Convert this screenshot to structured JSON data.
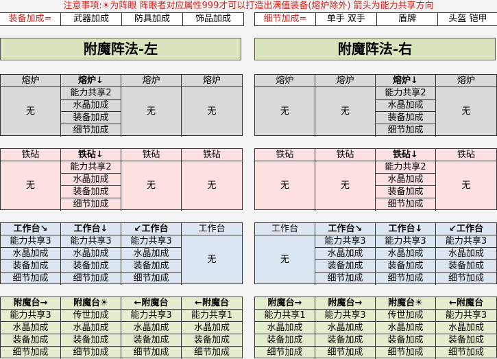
{
  "notice": "注意事项:☀为阵眼 阵眼者对应属性999才可以打造出满值装备(熔炉除外) 箭头为能力共享方向",
  "header_left": [
    "装备加成=",
    "武器加成",
    "防具加成",
    "饰品加成"
  ],
  "header_right": [
    "细节加成=",
    "单手 双手",
    "盾牌",
    "头盔 铠甲"
  ],
  "titles": {
    "left": "附魔阵法-左",
    "right": "附魔阵法-右"
  },
  "colors": {
    "furnace": "#d9d9d9",
    "anvil": "#fde1e1",
    "workbench": "#dce6f1",
    "enchant": "#e2eecd",
    "title": "#d8e4bc",
    "accent": "#e0201b"
  },
  "sections": [
    {
      "key": "furnace",
      "left": [
        {
          "h": "熔炉",
          "none": "无"
        },
        {
          "h": "熔炉↓",
          "b": true,
          "items": [
            "能力共享2",
            "水晶加成",
            "装备加成",
            "细节加成"
          ]
        },
        {
          "h": "熔炉",
          "none": "无"
        },
        {
          "h": "熔炉",
          "none": "无"
        }
      ],
      "right": [
        {
          "h": "熔炉",
          "none": "无"
        },
        {
          "h": "熔炉",
          "none": "无"
        },
        {
          "h": "熔炉↓",
          "b": true,
          "items": [
            "能力共享2",
            "水晶加成",
            "装备加成",
            "细节加成"
          ]
        },
        {
          "h": "熔炉",
          "none": "无"
        }
      ]
    },
    {
      "key": "anvil",
      "left": [
        {
          "h": "铁砧",
          "none": "无"
        },
        {
          "h": "铁砧↓",
          "b": true,
          "items": [
            "能力共享2",
            "水晶加成",
            "装备加成",
            "细节加成"
          ]
        },
        {
          "h": "铁砧",
          "none": "无"
        },
        {
          "h": "铁砧",
          "none": "无"
        }
      ],
      "right": [
        {
          "h": "铁砧",
          "none": "无"
        },
        {
          "h": "铁砧",
          "none": "无"
        },
        {
          "h": "铁砧↓",
          "b": true,
          "items": [
            "能力共享2",
            "水晶加成",
            "装备加成",
            "细节加成"
          ]
        },
        {
          "h": "铁砧",
          "none": "无"
        }
      ]
    },
    {
      "key": "workbench",
      "left": [
        {
          "h": "工作台↘",
          "b": true,
          "items": [
            "能力共享3",
            "水晶加成",
            "装备加成",
            "细节加成"
          ]
        },
        {
          "h": "工作台↓",
          "b": true,
          "items": [
            "能力共享3",
            "水晶加成",
            "装备加成",
            "细节加成"
          ]
        },
        {
          "h": "↙工作台",
          "b": true,
          "items": [
            "能力共享3",
            "水晶加成",
            "装备加成",
            "细节加成"
          ]
        },
        {
          "h": "工作台",
          "none": "无"
        }
      ],
      "right": [
        {
          "h": "工作台",
          "none": "无"
        },
        {
          "h": "工作台↘",
          "b": true,
          "items": [
            "能力共享3",
            "水晶加成",
            "装备加成",
            "细节加成"
          ]
        },
        {
          "h": "工作台↓",
          "b": true,
          "items": [
            "能力共享3",
            "水晶加成",
            "装备加成",
            "细节加成"
          ]
        },
        {
          "h": "↙工作台",
          "b": true,
          "items": [
            "能力共享3",
            "水晶加成",
            "装备加成",
            "细节加成"
          ]
        }
      ]
    },
    {
      "key": "enchant",
      "left": [
        {
          "h": "附魔台→",
          "b": true,
          "items": [
            "能力共享3",
            "水晶加成",
            "装备加成",
            "细节加成"
          ]
        },
        {
          "h": "附魔台☀",
          "b": true,
          "items": [
            "传世加成",
            "水晶加成",
            "装备加成",
            "细节加成"
          ]
        },
        {
          "h": "←附魔台",
          "b": true,
          "items": [
            "能力共享3",
            "水晶加成",
            "装备加成",
            "细节加成"
          ]
        },
        {
          "h": "←附魔台",
          "b": true,
          "items": [
            "能力共享1",
            "水晶加成",
            "装备加成",
            "细节加成"
          ]
        }
      ],
      "right": [
        {
          "h": "附魔台→",
          "b": true,
          "items": [
            "能力共享1",
            "水晶加成",
            "装备加成",
            "细节加成"
          ]
        },
        {
          "h": "附魔台→",
          "b": true,
          "items": [
            "能力共享3",
            "水晶加成",
            "装备加成",
            "细节加成"
          ]
        },
        {
          "h": "附魔台☀",
          "b": true,
          "items": [
            "传世加成",
            "水晶加成",
            "装备加成",
            "细节加成"
          ]
        },
        {
          "h": "←附魔台",
          "b": true,
          "items": [
            "能力共享3",
            "水晶加成",
            "装备加成",
            "细节加成"
          ]
        }
      ]
    }
  ]
}
